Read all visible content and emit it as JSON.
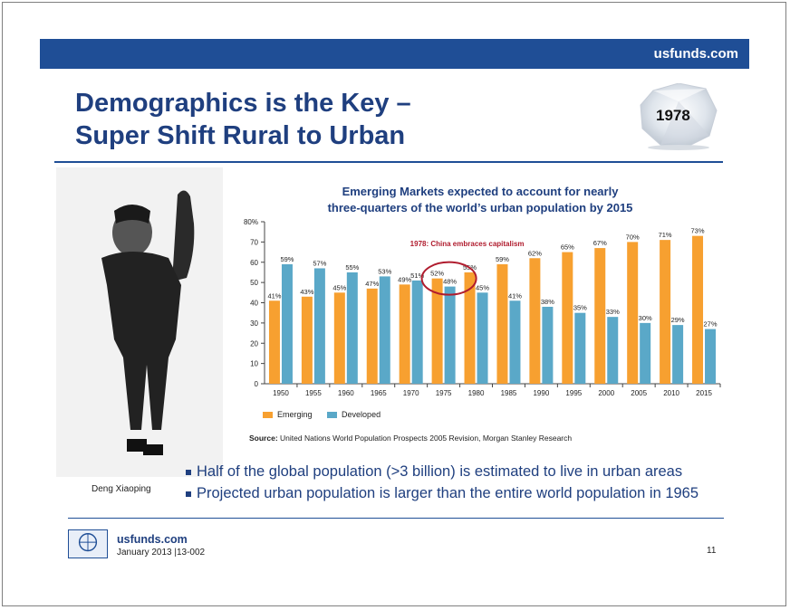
{
  "header": {
    "site": "usfunds.com",
    "title_line1": "Demographics is the Key –",
    "title_line2": "Super Shift Rural to Urban",
    "badge_year": "1978"
  },
  "photo": {
    "caption": "Deng Xiaoping"
  },
  "chart_data": {
    "type": "bar",
    "title_line1": "Emerging Markets expected to account for nearly",
    "title_line2": "three-quarters of the world’s urban population by 2015",
    "categories": [
      "1950",
      "1955",
      "1960",
      "1965",
      "1970",
      "1975",
      "1980",
      "1985",
      "1990",
      "1995",
      "2000",
      "2005",
      "2010",
      "2015"
    ],
    "series": [
      {
        "name": "Emerging",
        "color": "#f7a030",
        "values": [
          41,
          43,
          45,
          47,
          49,
          52,
          55,
          59,
          62,
          65,
          67,
          70,
          71,
          73
        ]
      },
      {
        "name": "Developed",
        "color": "#5aa8c8",
        "values": [
          59,
          57,
          55,
          53,
          51,
          48,
          45,
          41,
          38,
          35,
          33,
          30,
          29,
          27
        ]
      }
    ],
    "ylim": [
      0,
      80
    ],
    "yticks": [
      "0",
      "10",
      "20",
      "30",
      "40",
      "50",
      "60",
      "70",
      "80%"
    ],
    "annotation": "1978: China embraces capitalism",
    "legend_position": "bottom-left",
    "source_label": "Source:",
    "source_text": "United Nations World Population Prospects 2005 Revision, Morgan Stanley Research"
  },
  "bullets": [
    "Half of the global population (>3 billion) is estimated to live in urban areas",
    "Projected urban population is larger than the entire world population in 1965"
  ],
  "footer": {
    "url": "usfunds.com",
    "date": "January 2013 |13-002",
    "page": "11"
  }
}
